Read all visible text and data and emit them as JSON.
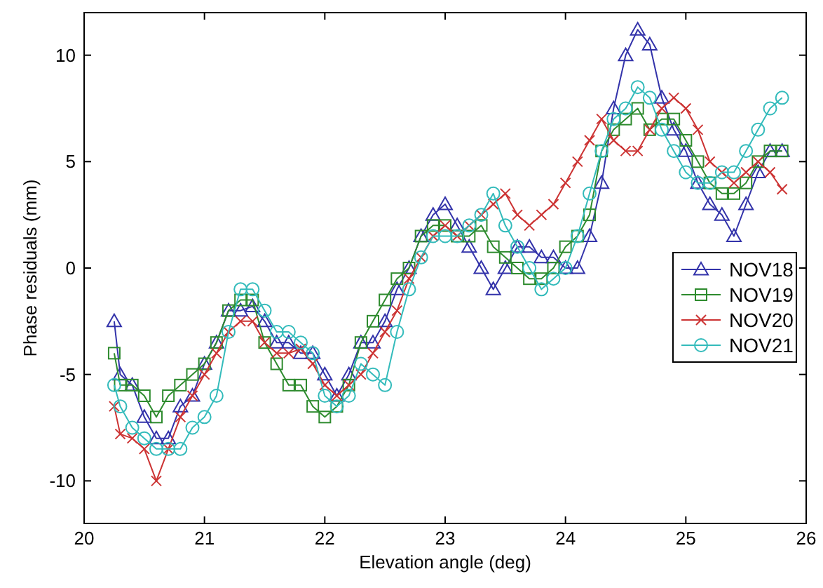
{
  "chart_data": {
    "type": "line",
    "xlabel": "Elevation angle (deg)",
    "ylabel": "Phase residuals (mm)",
    "xlim": [
      20,
      26
    ],
    "xticks": [
      20,
      21,
      22,
      23,
      24,
      25,
      26
    ],
    "ylim": [
      -12,
      12
    ],
    "yticks": [
      -10,
      -5,
      0,
      5,
      10
    ],
    "grid": false,
    "legend": "right",
    "line_style": "solid",
    "x": [
      20.25,
      20.3,
      20.4,
      20.5,
      20.6,
      20.7,
      20.8,
      20.9,
      21.0,
      21.1,
      21.2,
      21.3,
      21.4,
      21.5,
      21.6,
      21.7,
      21.8,
      21.9,
      22.0,
      22.1,
      22.2,
      22.3,
      22.4,
      22.5,
      22.6,
      22.7,
      22.8,
      22.9,
      23.0,
      23.1,
      23.2,
      23.3,
      23.4,
      23.5,
      23.6,
      23.7,
      23.8,
      23.9,
      24.0,
      24.1,
      24.2,
      24.3,
      24.4,
      24.5,
      24.6,
      24.7,
      24.8,
      24.9,
      25.0,
      25.1,
      25.2,
      25.3,
      25.4,
      25.5,
      25.6,
      25.7,
      25.8
    ],
    "series": [
      {
        "name": "NOV18",
        "color": "#3333aa",
        "marker": "triangle",
        "values": [
          -2.5,
          -5,
          -5.5,
          -7,
          -8,
          -8,
          -6.5,
          -6,
          -4.5,
          -3.5,
          -2,
          -2,
          -1.8,
          -2.5,
          -3.5,
          -3.5,
          -4,
          -4,
          -5,
          -6,
          -5,
          -3.5,
          -3.5,
          -2.5,
          -1,
          0,
          1.5,
          2.5,
          3,
          2,
          1,
          0,
          -1,
          0,
          1,
          1,
          0.5,
          0.5,
          0,
          0,
          1.5,
          4,
          7.5,
          10,
          11.2,
          10.5,
          8,
          6.5,
          5.5,
          4,
          3,
          2.5,
          1.5,
          3,
          4.5,
          5.5,
          5.5
        ]
      },
      {
        "name": "NOV19",
        "color": "#2e8b2e",
        "marker": "square",
        "values": [
          -4,
          -5.5,
          -5.5,
          -6,
          -7,
          -6,
          -5.5,
          -5,
          -4.5,
          -3.5,
          -2,
          -1.5,
          -1.5,
          -3.5,
          -4.5,
          -5.5,
          -5.5,
          -6.5,
          -7,
          -6.5,
          -5.5,
          -3.5,
          -2.5,
          -1.5,
          -0.5,
          0,
          1.5,
          2,
          2,
          1.5,
          1.5,
          2,
          1,
          0.5,
          0,
          -0.5,
          -0.5,
          0,
          1,
          1.5,
          2.5,
          5.5,
          6.5,
          7,
          7.5,
          6.5,
          7,
          7,
          6,
          5,
          4,
          3.5,
          3.5,
          4,
          5,
          5.5,
          5.5
        ]
      },
      {
        "name": "NOV20",
        "color": "#cc3333",
        "marker": "cross",
        "values": [
          -6.5,
          -7.8,
          -8,
          -8.5,
          -10,
          -8.5,
          -7,
          -6,
          -5,
          -4,
          -3,
          -2.5,
          -2.5,
          -3.5,
          -4,
          -4,
          -3.8,
          -4.5,
          -5.5,
          -6,
          -5.5,
          -5,
          -4,
          -3,
          -2,
          -0.5,
          0.5,
          1.5,
          2,
          1.5,
          2,
          2.5,
          3,
          3.5,
          2.5,
          2,
          2.5,
          3,
          4,
          5,
          6,
          7,
          6,
          5.5,
          5.5,
          6.5,
          7.5,
          8,
          7.5,
          6.5,
          5,
          4.5,
          4,
          4.5,
          5,
          4.5,
          3.7
        ]
      },
      {
        "name": "NOV21",
        "color": "#33bbbb",
        "marker": "circle",
        "values": [
          -5.5,
          -6.5,
          -7.5,
          -8,
          -8.5,
          -8.5,
          -8.5,
          -7.5,
          -7,
          -6,
          -3,
          -1,
          -1,
          -2,
          -3,
          -3,
          -3.5,
          -4,
          -6,
          -6.5,
          -6,
          -4.5,
          -5,
          -5.5,
          -3,
          -1,
          0.5,
          1.5,
          1.5,
          1.5,
          2,
          2.5,
          3.5,
          2,
          1,
          0,
          -1,
          -0.5,
          0,
          1.5,
          3.5,
          5.5,
          7,
          7.5,
          8.5,
          8,
          6.5,
          5.5,
          4.5,
          4,
          4,
          4.5,
          4.5,
          5.5,
          6.5,
          7.5,
          8
        ]
      }
    ]
  }
}
